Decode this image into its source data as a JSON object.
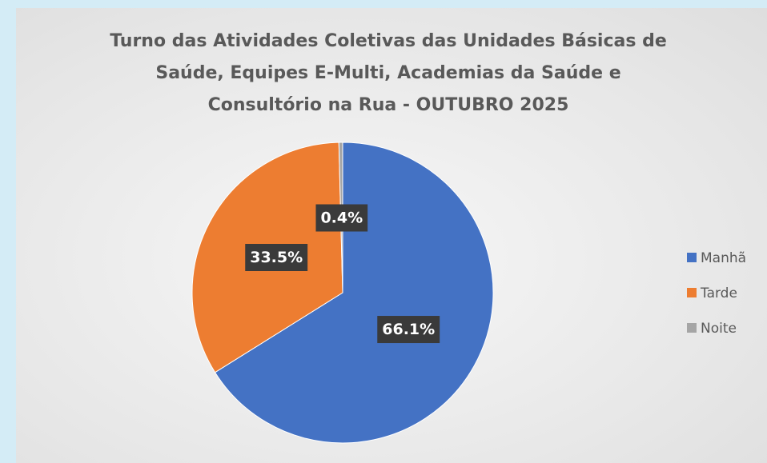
{
  "chart_data": {
    "type": "pie",
    "title": "Turno das Atividades Coletivas das Unidades Básicas de Saúde, Equipes E-Multi, Academias da Saúde e Consultório na Rua - OUTUBRO 2025",
    "categories": [
      "Manhã",
      "Tarde",
      "Noite"
    ],
    "values": [
      66.1,
      33.5,
      0.4
    ],
    "value_labels": [
      "66.1%",
      "33.5%",
      "0.4%"
    ],
    "colors": [
      "#4472c4",
      "#ed7d31",
      "#a5a5a5"
    ],
    "legend": "right"
  }
}
